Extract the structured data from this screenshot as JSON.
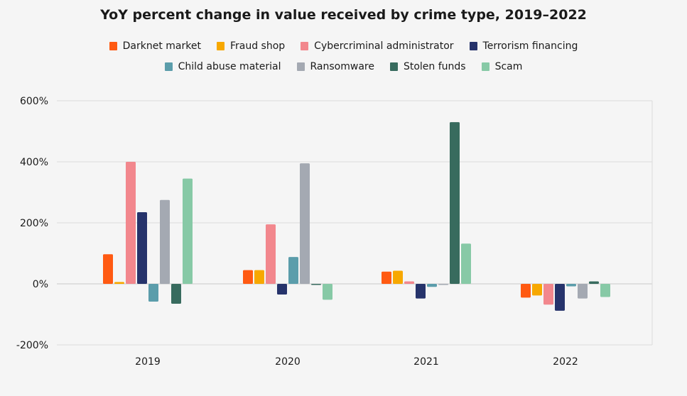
{
  "chart_data": {
    "type": "bar",
    "title": "YoY percent change in value received by crime type, 2019–2022",
    "xlabel": "",
    "ylabel": "",
    "categories": [
      "2019",
      "2020",
      "2021",
      "2022"
    ],
    "ylim": [
      -200,
      600
    ],
    "yticks": [
      -200,
      0,
      200,
      400,
      600
    ],
    "ytick_labels": [
      "-200%",
      "0%",
      "200%",
      "400%",
      "600%"
    ],
    "grid": true,
    "legend_position": "top",
    "series": [
      {
        "name": "Darknet market",
        "color": "#ff5a12",
        "values": [
          97,
          45,
          40,
          -45
        ]
      },
      {
        "name": "Fraud shop",
        "color": "#f7a800",
        "values": [
          6,
          45,
          43,
          -38
        ]
      },
      {
        "name": "Cybercriminal administrator",
        "color": "#f2878d",
        "values": [
          400,
          195,
          8,
          -68
        ]
      },
      {
        "name": "Terrorism financing",
        "color": "#26336b",
        "values": [
          235,
          -35,
          -48,
          -88
        ]
      },
      {
        "name": "Child abuse material",
        "color": "#5b9dab",
        "values": [
          -58,
          88,
          -10,
          -8
        ]
      },
      {
        "name": "Ransomware",
        "color": "#a4a9b2",
        "values": [
          275,
          395,
          -2,
          -48
        ]
      },
      {
        "name": "Stolen funds",
        "color": "#386b5e",
        "values": [
          -65,
          -3,
          530,
          8
        ]
      },
      {
        "name": "Scam",
        "color": "#87c9a6",
        "values": [
          345,
          -52,
          132,
          -43
        ]
      }
    ]
  }
}
